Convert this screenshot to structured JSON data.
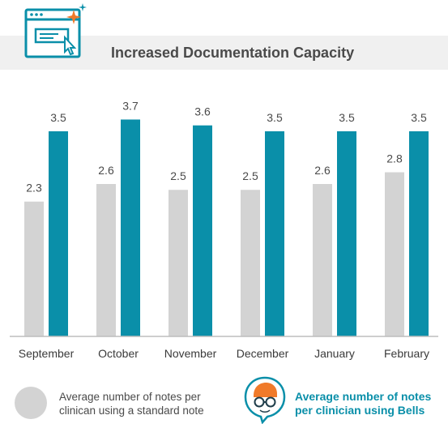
{
  "header": {
    "title": "Increased Documentation Capacity"
  },
  "colors": {
    "standard": "#d3d3d3",
    "bells": "#0a8fa9",
    "axis": "#bdbdbd"
  },
  "legend": {
    "standard_label": "Average number of notes per clinican using a standard note",
    "bells_label": "Average number of notes per clinician using Bells"
  },
  "chart_data": {
    "type": "bar",
    "title": "Increased Documentation Capacity",
    "categories": [
      "September",
      "October",
      "November",
      "December",
      "January",
      "February"
    ],
    "series": [
      {
        "name": "Average number of notes per clinican using a standard note",
        "values": [
          2.3,
          2.6,
          2.5,
          2.5,
          2.6,
          2.8
        ]
      },
      {
        "name": "Average number of notes per clinician using Bells",
        "values": [
          3.5,
          3.7,
          3.6,
          3.5,
          3.5,
          3.5
        ]
      }
    ],
    "ylim": [
      0,
      3.9
    ],
    "grid": false,
    "legend_position": "bottom"
  }
}
